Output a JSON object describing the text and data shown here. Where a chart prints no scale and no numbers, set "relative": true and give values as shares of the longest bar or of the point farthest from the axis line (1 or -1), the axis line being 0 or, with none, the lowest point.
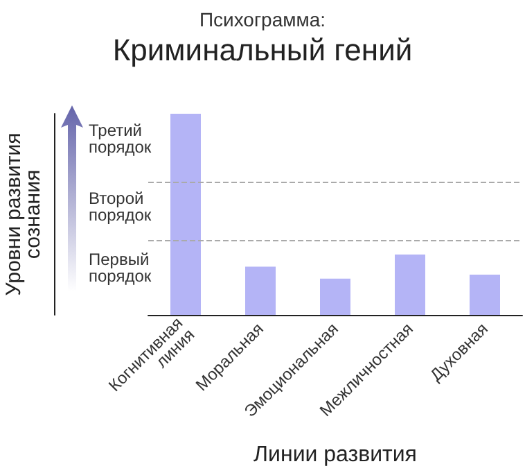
{
  "chart_data": {
    "type": "bar",
    "title": "Психограмма:",
    "subtitle": "Криминальный гений",
    "xlabel": "Линии развития",
    "ylabel": "Уровни развития сознания",
    "categories": [
      "Когнитивная линия",
      "Моральная",
      "Эмоциональная",
      "Межличностная",
      "Духовная"
    ],
    "values": [
      1,
      0.24,
      0.18,
      0.3,
      0.2
    ],
    "color": "#b4b4f6",
    "relative": true,
    "ref_lines": [
      {
        "axis": "y",
        "value": 0.37,
        "color": "#aaaaaa",
        "line_style": "dashed"
      },
      {
        "axis": "y",
        "value": 0.66,
        "color": "#aaaaaa",
        "line_style": "dashed"
      }
    ],
    "annotations": [
      "Третий порядок",
      "Второй порядок",
      "Первый порядок"
    ],
    "grid": false
  }
}
